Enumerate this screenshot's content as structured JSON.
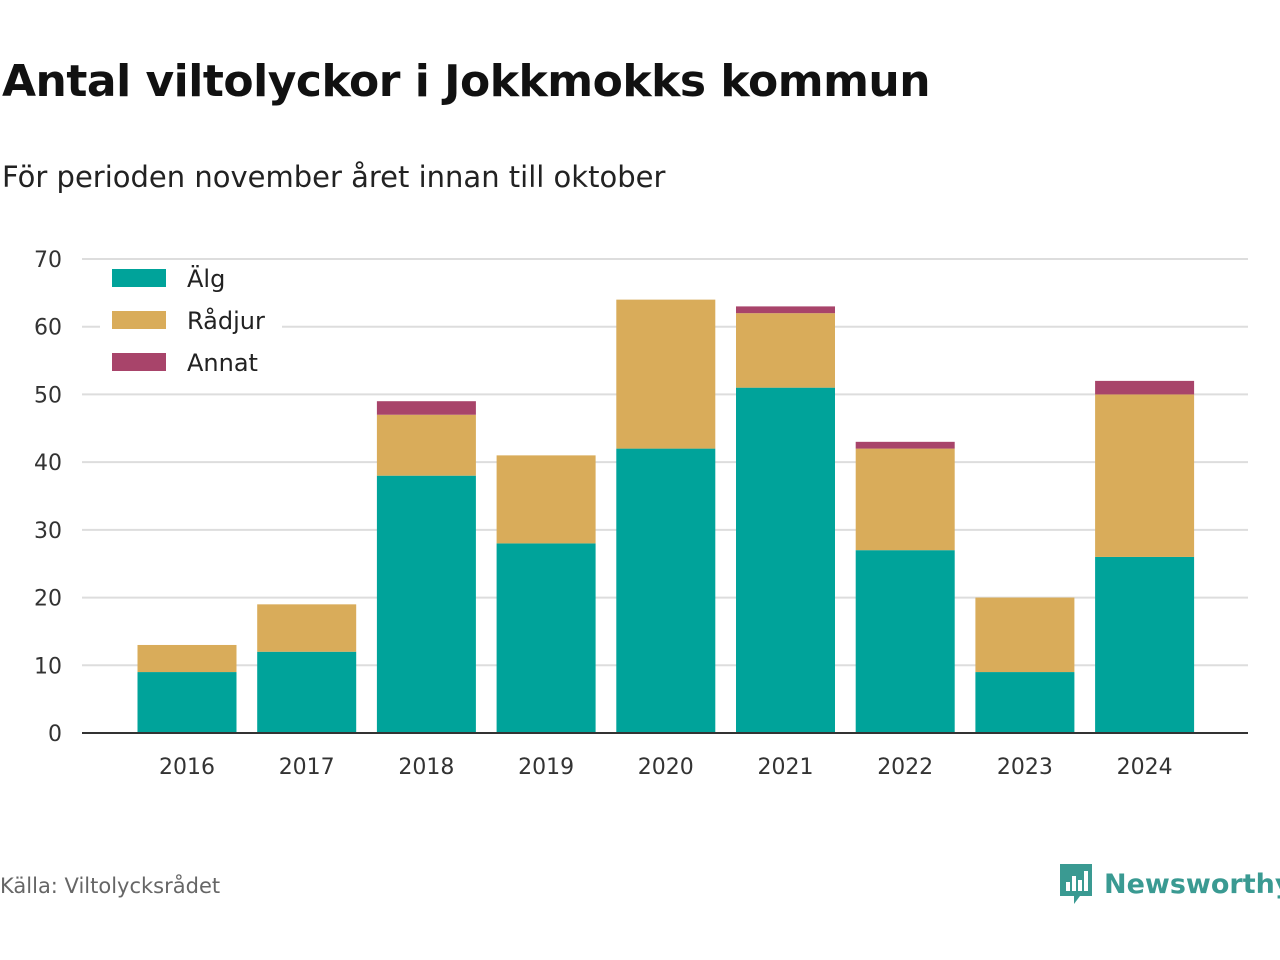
{
  "title": "Antal viltolyckor i Jokkmokks kommun",
  "subtitle": "För perioden november året innan till oktober",
  "source": "Källa: Viltolycksrådet",
  "brand": {
    "name": "Newsworthy",
    "icon": "newsworthy-logo-icon",
    "color": "#3a9a92"
  },
  "chart_data": {
    "type": "bar",
    "stacked": true,
    "categories": [
      "2016",
      "2017",
      "2018",
      "2019",
      "2020",
      "2021",
      "2022",
      "2023",
      "2024"
    ],
    "series": [
      {
        "name": "Älg",
        "color": "#00a39a",
        "values": [
          9,
          12,
          38,
          28,
          42,
          51,
          27,
          9,
          26
        ]
      },
      {
        "name": "Rådjur",
        "color": "#d9ac5a",
        "values": [
          4,
          7,
          9,
          13,
          22,
          11,
          15,
          11,
          24
        ]
      },
      {
        "name": "Annat",
        "color": "#a8446a",
        "values": [
          0,
          0,
          2,
          0,
          0,
          1,
          1,
          0,
          2
        ]
      }
    ],
    "ylim": [
      0,
      70
    ],
    "yticks": [
      0,
      10,
      20,
      30,
      40,
      50,
      60,
      70
    ],
    "grid": true,
    "legend_position": "top-left",
    "xlabel": "",
    "ylabel": ""
  }
}
